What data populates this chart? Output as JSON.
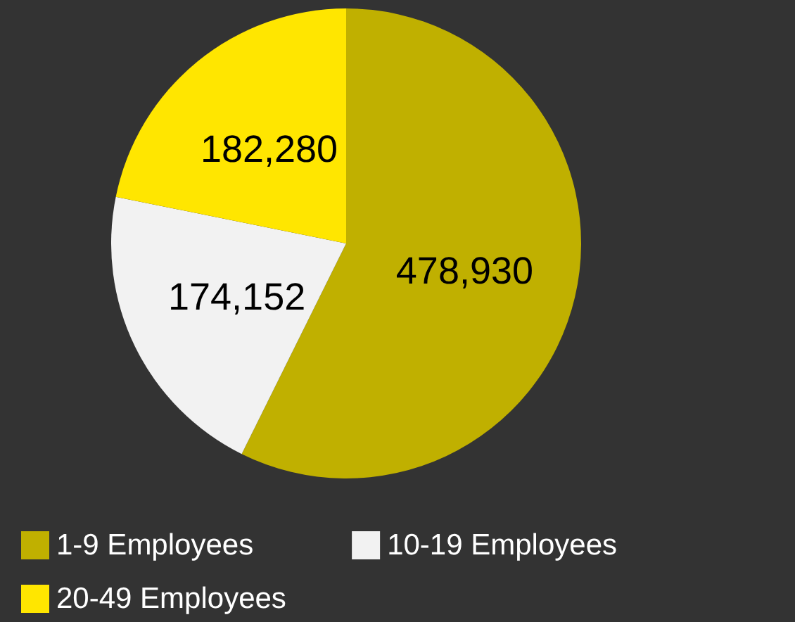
{
  "chart_data": {
    "type": "pie",
    "categories": [
      "1-9 Employees",
      "10-19 Employees",
      "20-49 Employees"
    ],
    "values": [
      478930,
      174152,
      182280
    ],
    "value_labels": [
      "478,930",
      "174,152",
      "182,280"
    ],
    "colors": [
      "#c0b000",
      "#f2f2f2",
      "#ffe600"
    ],
    "legend": "bottom left"
  }
}
